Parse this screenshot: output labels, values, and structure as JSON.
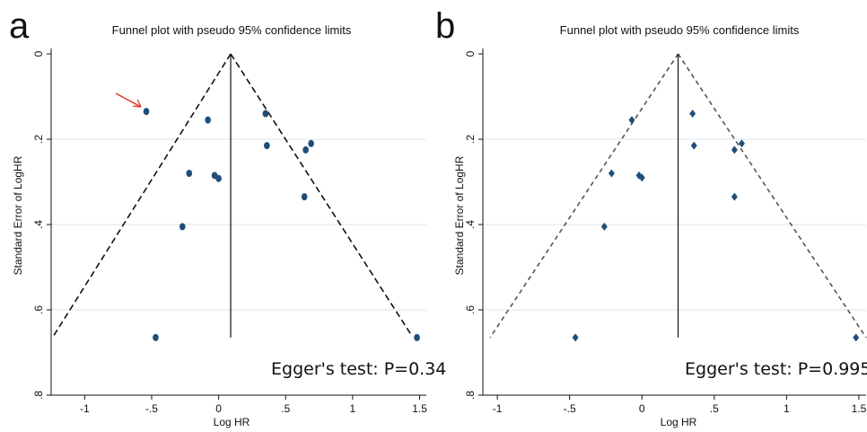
{
  "chart_data": [
    {
      "type": "scatter",
      "panel_letter": "a",
      "title": "Funnel plot with pseudo 95% confidence limits",
      "xlabel": "Log HR",
      "ylabel": "Standard Error of LogHR",
      "xlim": [
        -1.25,
        1.55
      ],
      "ylim": [
        0,
        0.8
      ],
      "y_reversed": true,
      "x_ticks": [
        "-1",
        "-.5",
        "0",
        ".5",
        "1",
        "1.5"
      ],
      "x_tick_values": [
        -1,
        -0.5,
        0,
        0.5,
        1,
        1.5
      ],
      "y_ticks": [
        "0",
        ".2",
        ".4",
        ".6",
        ".8"
      ],
      "y_tick_values": [
        0,
        0.2,
        0.4,
        0.6,
        0.8
      ],
      "grid": "horizontal",
      "marker": "circle",
      "marker_color": "#1f4e79",
      "line_color": "#111111",
      "dash_style": "coarse",
      "center_line_x": 0.09,
      "funnel": {
        "apex": [
          0.09,
          0.0
        ],
        "left_base": [
          -1.23,
          0.66
        ],
        "right_base": [
          1.44,
          0.66
        ]
      },
      "points": [
        {
          "x": -0.54,
          "y": 0.135
        },
        {
          "x": -0.08,
          "y": 0.155
        },
        {
          "x": 0.35,
          "y": 0.14
        },
        {
          "x": 0.36,
          "y": 0.215
        },
        {
          "x": 0.65,
          "y": 0.225
        },
        {
          "x": 0.69,
          "y": 0.21
        },
        {
          "x": -0.22,
          "y": 0.28
        },
        {
          "x": -0.03,
          "y": 0.285
        },
        {
          "x": 0.0,
          "y": 0.292
        },
        {
          "x": 0.64,
          "y": 0.335
        },
        {
          "x": -0.27,
          "y": 0.405
        },
        {
          "x": -0.47,
          "y": 0.665
        },
        {
          "x": 1.48,
          "y": 0.665
        }
      ],
      "arrow_target": {
        "x": -0.6,
        "y": 0.12
      },
      "arrow_color": "#e03020",
      "annotation": "Egger's test: P=0.34"
    },
    {
      "type": "scatter",
      "panel_letter": "b",
      "title": "Funnel plot with pseudo 95% confidence limits",
      "xlabel": "Log HR",
      "ylabel": "Standard Error of LogHR",
      "xlim": [
        -1.1,
        1.55
      ],
      "ylim": [
        0,
        0.8
      ],
      "y_reversed": true,
      "x_ticks": [
        "-1",
        "-.5",
        "0",
        ".5",
        "1",
        "1.5"
      ],
      "x_tick_values": [
        -1,
        -0.5,
        0,
        0.5,
        1,
        1.5
      ],
      "y_ticks": [
        "0",
        ".2",
        ".4",
        ".6",
        ".8"
      ],
      "y_tick_values": [
        0,
        0.2,
        0.4,
        0.6,
        0.8
      ],
      "grid": "horizontal",
      "marker": "diamond",
      "marker_color": "#1f4e79",
      "line_color": "#555555",
      "dash_style": "fine",
      "center_line_x": 0.25,
      "funnel": {
        "apex": [
          0.25,
          0.0
        ],
        "left_base": [
          -1.05,
          0.665
        ],
        "right_base": [
          1.55,
          0.665
        ]
      },
      "points": [
        {
          "x": -0.07,
          "y": 0.155
        },
        {
          "x": 0.35,
          "y": 0.14
        },
        {
          "x": 0.36,
          "y": 0.215
        },
        {
          "x": 0.64,
          "y": 0.225
        },
        {
          "x": 0.69,
          "y": 0.21
        },
        {
          "x": -0.21,
          "y": 0.28
        },
        {
          "x": -0.02,
          "y": 0.285
        },
        {
          "x": 0.0,
          "y": 0.29
        },
        {
          "x": 0.64,
          "y": 0.335
        },
        {
          "x": -0.26,
          "y": 0.405
        },
        {
          "x": -0.46,
          "y": 0.665
        },
        {
          "x": 1.48,
          "y": 0.665
        }
      ],
      "annotation": "Egger's test: P=0.995"
    }
  ]
}
